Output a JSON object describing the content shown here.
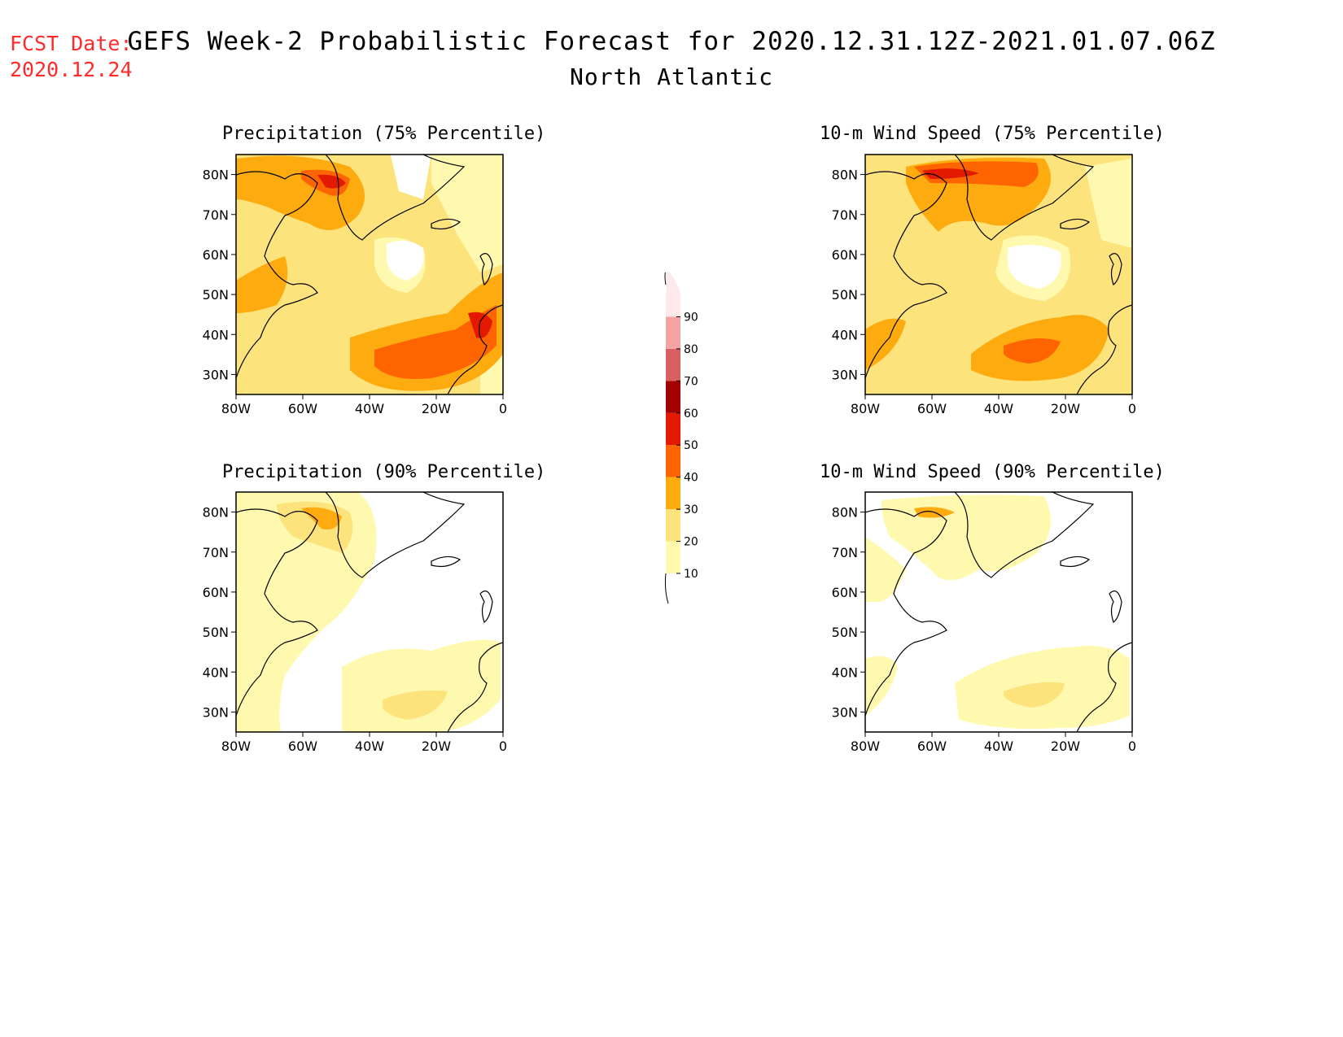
{
  "fcst_date": {
    "label": "FCST Date:",
    "date": "2020.12.24"
  },
  "header": {
    "title": "GEFS Week-2 Probabilistic Forecast for 2020.12.31.12Z-2021.01.07.06Z",
    "subtitle": "North Atlantic"
  },
  "panels": [
    {
      "title": "Precipitation (75% Percentile)"
    },
    {
      "title": "10-m Wind Speed (75% Percentile)"
    },
    {
      "title": "Precipitation (90% Percentile)"
    },
    {
      "title": "10-m Wind Speed (90% Percentile)"
    }
  ],
  "axes": {
    "lat_labels": [
      "80N",
      "70N",
      "60N",
      "50N",
      "40N",
      "30N"
    ],
    "lon_labels": [
      "80W",
      "60W",
      "40W",
      "20W",
      "0"
    ]
  },
  "colorbar": {
    "levels": [
      "10",
      "20",
      "30",
      "40",
      "50",
      "60",
      "70",
      "80",
      "90"
    ],
    "colors": [
      "#fff9b0",
      "#fde37b",
      "#fdab0f",
      "#fe6500",
      "#e31a00",
      "#a50000",
      "#d96060",
      "#f4a2a2",
      "#fde8ea"
    ]
  },
  "colors": {
    "fcst_date": "#ff2a2a",
    "coast": "#000000"
  }
}
